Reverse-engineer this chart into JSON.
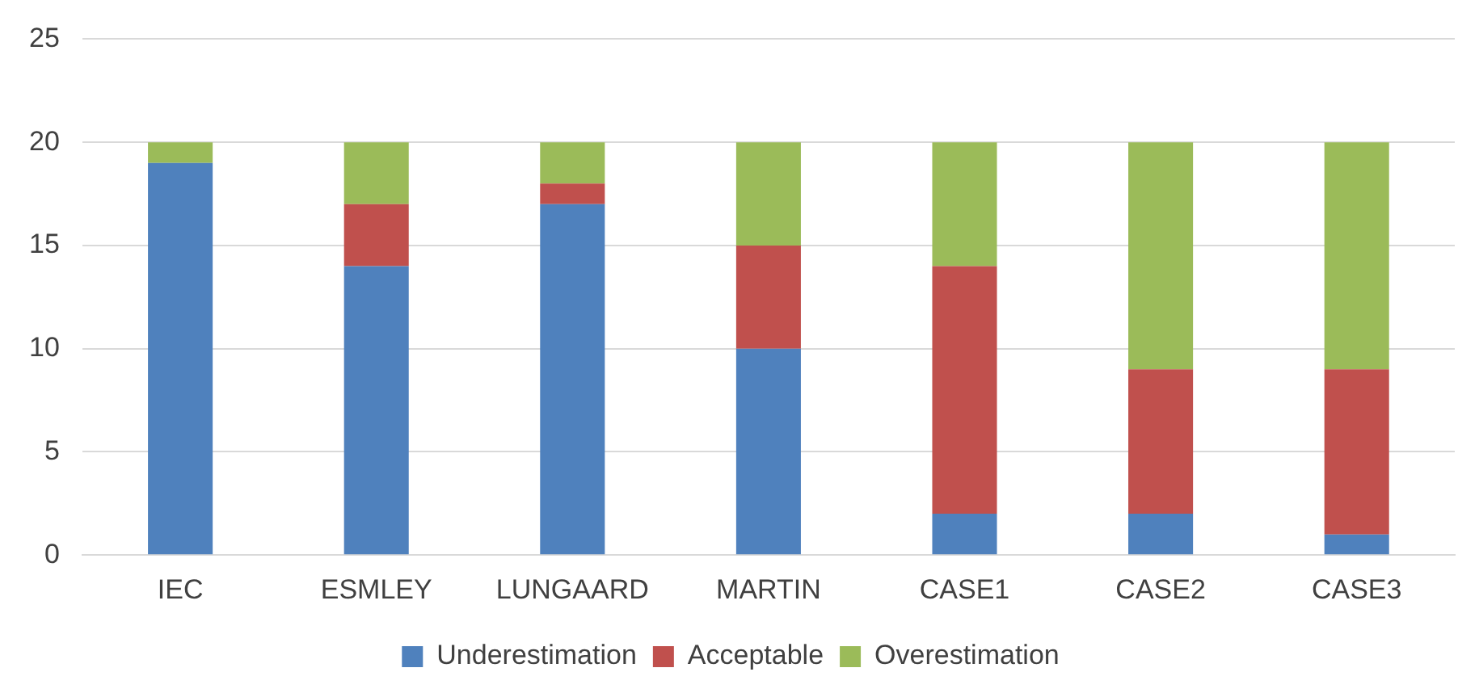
{
  "chart_data": {
    "type": "bar",
    "stacked": true,
    "categories": [
      "IEC",
      "ESMLEY",
      "LUNGAARD",
      "MARTIN",
      "CASE1",
      "CASE2",
      "CASE3"
    ],
    "series": [
      {
        "name": "Underestimation",
        "color": "#4f81bd",
        "values": [
          19,
          14,
          17,
          10,
          2,
          2,
          1
        ]
      },
      {
        "name": "Acceptable",
        "color": "#c0504d",
        "values": [
          0,
          3,
          1,
          5,
          12,
          7,
          8
        ]
      },
      {
        "name": "Overestimation",
        "color": "#9bbb59",
        "values": [
          1,
          3,
          2,
          5,
          6,
          11,
          11
        ]
      }
    ],
    "ylim": [
      0,
      25
    ],
    "yticks": [
      0,
      5,
      10,
      15,
      20,
      25
    ],
    "grid": "y",
    "legend": "bottom"
  }
}
